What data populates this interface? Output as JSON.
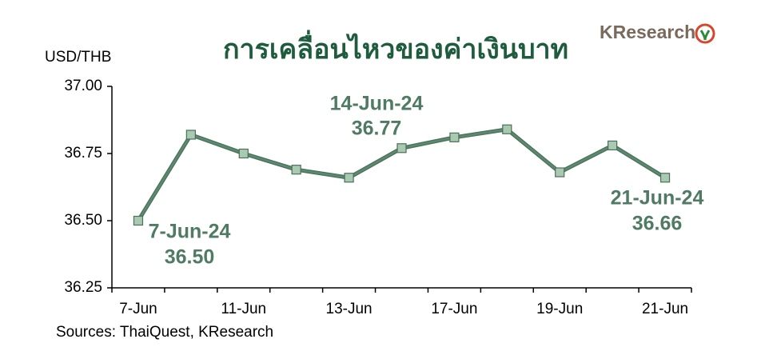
{
  "chart_data": {
    "type": "line",
    "title": "การเคลื่อนไหวของค่าเงินบาท",
    "y_label": "USD/THB",
    "source": "Sources: ThaiQuest, KResearch",
    "logo": "KResearch",
    "categories": [
      "7-Jun",
      null,
      "11-Jun",
      null,
      "13-Jun",
      null,
      "17-Jun",
      null,
      "19-Jun",
      null,
      "21-Jun"
    ],
    "series": [
      {
        "name": "USD/THB",
        "color": "#5b8a70",
        "marker_color": "#a9c9b0",
        "values": [
          36.5,
          36.82,
          36.75,
          36.69,
          36.66,
          36.77,
          36.81,
          36.84,
          36.68,
          36.78,
          36.66
        ]
      }
    ],
    "ylim": [
      36.25,
      37.0
    ],
    "yticks": [
      {
        "value": 36.25,
        "label": "36.25"
      },
      {
        "value": 36.5,
        "label": "36.50"
      },
      {
        "value": 36.75,
        "label": "36.75"
      },
      {
        "value": 37,
        "label": "37.00"
      }
    ],
    "annotations": [
      "7-Jun-24",
      "36.50",
      "14-Jun-24",
      "36.77",
      "21-Jun-24",
      "36.66"
    ],
    "grid": false
  }
}
